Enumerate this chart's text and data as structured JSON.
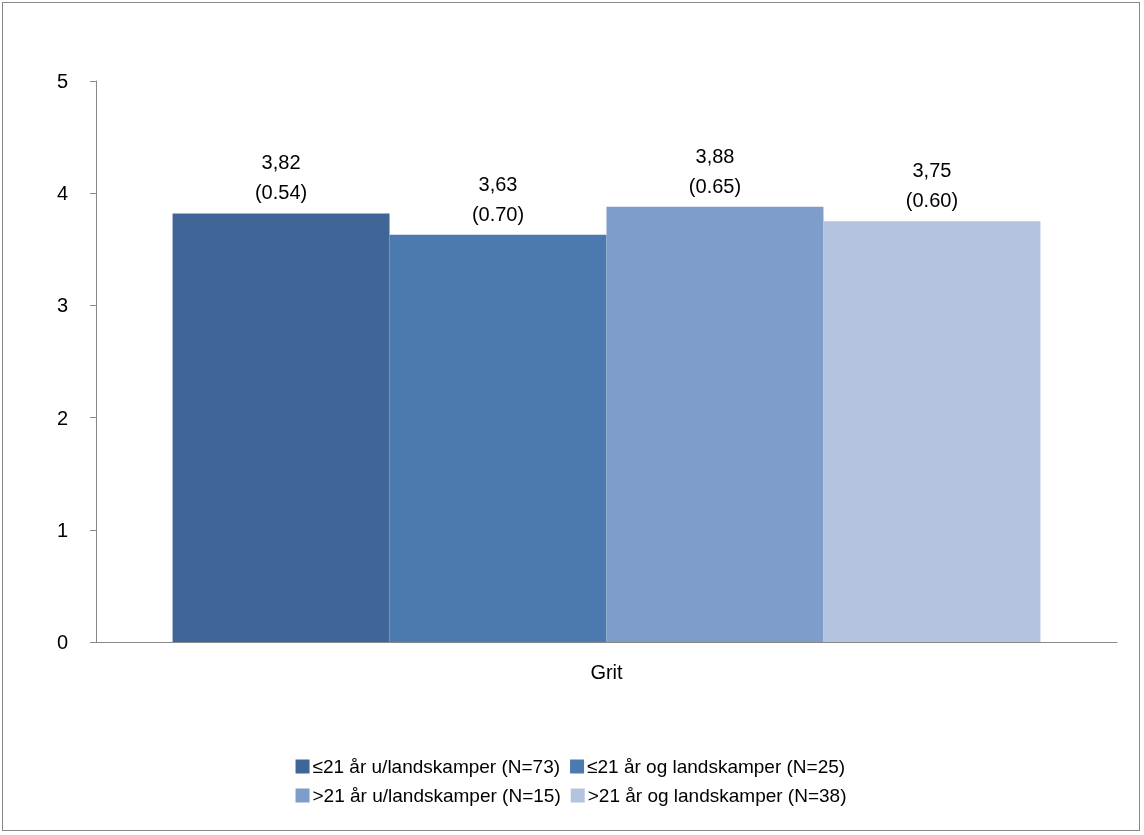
{
  "chart_data": {
    "type": "bar",
    "categories": [
      "Grit"
    ],
    "ylim": [
      0,
      5
    ],
    "yticks": [
      0,
      1,
      2,
      3,
      4,
      5
    ],
    "grid": false,
    "legend": "bottom",
    "series": [
      {
        "name": "≤21 år u/landskamper (N=73)",
        "color": "#3f6696",
        "values": [
          3.82
        ],
        "value_labels": [
          "3,82\n(0.54)"
        ]
      },
      {
        "name": "≤21 år og landskamper (N=25)",
        "color": "#4a7ab0",
        "values": [
          3.63
        ],
        "value_labels": [
          "3,63\n(0.70)"
        ]
      },
      {
        "name": ">21 år u/landskamper (N=15)",
        "color": "#7f9dc9",
        "values": [
          3.88
        ],
        "value_labels": [
          "3,88\n(0.65)"
        ]
      },
      {
        "name": ">21 år og landskamper (N=38)",
        "color": "#b4c3de",
        "values": [
          3.75
        ],
        "value_labels": [
          "3,75\n(0.60)"
        ]
      }
    ]
  }
}
